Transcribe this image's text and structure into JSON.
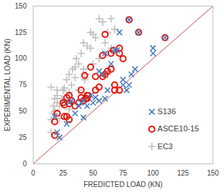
{
  "chart_data": {
    "type": "scatter",
    "x_label": "FREDICTED LOAD (KN)",
    "y_label": "EXPERIMENTAL LOAD (KN)",
    "xlim": [
      0,
      150
    ],
    "xticks": [
      0,
      25,
      50,
      75,
      100,
      125,
      150
    ],
    "ylim": [
      0,
      150
    ],
    "yticks": [
      0,
      25,
      50,
      75,
      100,
      125,
      150
    ],
    "grid": false,
    "legend": "lower right",
    "diagonal": {
      "x": [
        0,
        150
      ],
      "y": [
        0,
        150
      ],
      "color": "#c0504d"
    },
    "series": [
      {
        "name": "S136",
        "color": "#4a7ebb",
        "marker": "x",
        "x": [
          18,
          20,
          22,
          28,
          30,
          32,
          35,
          38,
          40,
          42,
          45,
          48,
          50,
          55,
          58,
          60,
          62,
          65,
          68,
          70,
          72,
          75,
          75,
          78,
          80,
          82,
          85,
          80,
          88,
          100,
          100,
          110,
          55,
          60,
          42,
          52
        ],
        "y": [
          45,
          30,
          25,
          38,
          58,
          60,
          48,
          55,
          58,
          60,
          55,
          65,
          58,
          60,
          85,
          105,
          70,
          95,
          108,
          108,
          125,
          75,
          80,
          70,
          75,
          85,
          90,
          137,
          125,
          105,
          110,
          120,
          88,
          62,
          44,
          63
        ]
      },
      {
        "name": "ASCE10-15",
        "color": "#e8150b",
        "marker": "circle",
        "x": [
          18,
          18,
          20,
          25,
          26,
          28,
          30,
          28,
          30,
          32,
          35,
          38,
          40,
          42,
          44,
          45,
          45,
          46,
          43,
          48,
          52,
          55,
          58,
          60,
          62,
          65,
          65,
          67,
          68,
          68,
          72,
          72,
          75,
          58,
          60,
          72,
          80,
          88,
          110,
          40,
          52,
          30,
          26
        ],
        "y": [
          27,
          40,
          48,
          58,
          56,
          63,
          65,
          45,
          42,
          60,
          55,
          58,
          63,
          60,
          62,
          62,
          65,
          65,
          84,
          92,
          83,
          73,
          83,
          85,
          88,
          105,
          90,
          108,
          75,
          70,
          105,
          110,
          100,
          103,
          123,
          70,
          137,
          125,
          120,
          70,
          70,
          57,
          45
        ]
      },
      {
        "name": "EC3",
        "color": "#bfbfbf",
        "marker": "plus",
        "x": [
          15,
          15,
          17,
          17,
          18,
          20,
          20,
          22,
          24,
          25,
          25,
          26,
          28,
          28,
          30,
          30,
          32,
          33,
          35,
          35,
          36,
          38,
          38,
          40,
          42,
          42,
          43,
          45,
          48,
          48,
          50,
          52,
          55,
          55,
          58,
          60,
          60,
          62,
          65,
          65,
          68,
          22,
          20,
          30,
          44,
          15,
          62,
          50,
          18
        ],
        "y": [
          30,
          42,
          48,
          55,
          62,
          70,
          65,
          55,
          62,
          60,
          70,
          72,
          60,
          80,
          85,
          68,
          75,
          90,
          82,
          92,
          100,
          95,
          70,
          105,
          90,
          115,
          80,
          112,
          110,
          125,
          123,
          120,
          138,
          100,
          135,
          115,
          105,
          125,
          110,
          138,
          128,
          43,
          58,
          52,
          85,
          73,
          85,
          95,
          50
        ]
      }
    ]
  }
}
